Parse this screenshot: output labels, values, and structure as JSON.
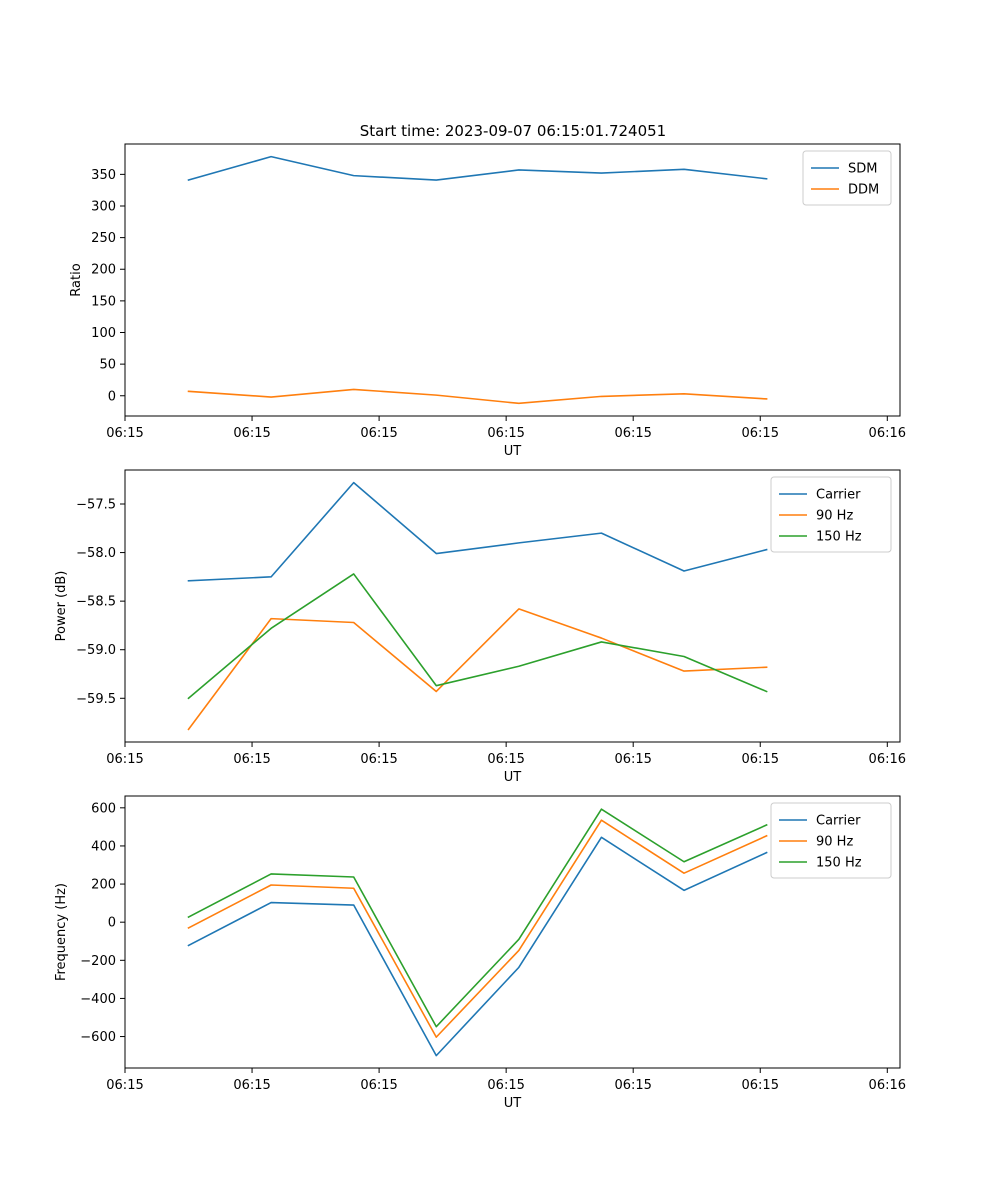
{
  "figure": {
    "title": "Start time: 2023-09-07 06:15:01.724051"
  },
  "chart_data": [
    {
      "type": "line",
      "xlabel": "UT",
      "ylabel": "Ratio",
      "x_tick_labels": [
        "06:15",
        "06:15",
        "06:15",
        "06:15",
        "06:15",
        "06:15",
        "06:16"
      ],
      "xlim": [
        0,
        6.1
      ],
      "x_ticks": [
        0.0,
        1.0,
        2.0,
        3.0,
        4.0,
        5.0,
        6.0
      ],
      "x": [
        0.5,
        1.15,
        1.8,
        2.45,
        3.1,
        3.75,
        4.4,
        5.05
      ],
      "ylim": [
        -32,
        398
      ],
      "y_ticks": [
        0,
        50,
        100,
        150,
        200,
        250,
        300,
        350
      ],
      "y_tick_labels": [
        "0",
        "50",
        "100",
        "150",
        "200",
        "250",
        "300",
        "350"
      ],
      "legend_location": "top-right",
      "series": [
        {
          "name": "SDM",
          "color": "#1f77b4",
          "values": [
            341,
            378,
            348,
            341,
            357,
            352,
            358,
            343
          ]
        },
        {
          "name": "DDM",
          "color": "#ff7f0e",
          "values": [
            7,
            -2,
            10,
            1,
            -12,
            -1,
            3,
            -5
          ]
        }
      ]
    },
    {
      "type": "line",
      "xlabel": "UT",
      "ylabel": "Power (dB)",
      "x_tick_labels": [
        "06:15",
        "06:15",
        "06:15",
        "06:15",
        "06:15",
        "06:15",
        "06:16"
      ],
      "xlim": [
        0,
        6.1
      ],
      "x_ticks": [
        0.0,
        1.0,
        2.0,
        3.0,
        4.0,
        5.0,
        6.0
      ],
      "x": [
        0.5,
        1.15,
        1.8,
        2.45,
        3.1,
        3.75,
        4.4,
        5.05
      ],
      "ylim": [
        -59.95,
        -57.15
      ],
      "y_ticks": [
        -59.5,
        -59.0,
        -58.5,
        -58.0,
        -57.5
      ],
      "y_tick_labels": [
        "−59.5",
        "−59.0",
        "−58.5",
        "−58.0",
        "−57.5"
      ],
      "legend_location": "top-right",
      "series": [
        {
          "name": "Carrier",
          "color": "#1f77b4",
          "values": [
            -58.29,
            -58.25,
            -57.28,
            -58.01,
            -57.9,
            -57.8,
            -58.19,
            -57.97
          ]
        },
        {
          "name": "90 Hz",
          "color": "#ff7f0e",
          "values": [
            -59.82,
            -58.68,
            -58.72,
            -59.43,
            -58.58,
            -58.88,
            -59.22,
            -59.18
          ]
        },
        {
          "name": "150 Hz",
          "color": "#2ca02c",
          "values": [
            -59.5,
            -58.78,
            -58.22,
            -59.37,
            -59.17,
            -58.92,
            -59.07,
            -59.43
          ]
        }
      ]
    },
    {
      "type": "line",
      "xlabel": "UT",
      "ylabel": "Frequency (Hz)",
      "x_tick_labels": [
        "06:15",
        "06:15",
        "06:15",
        "06:15",
        "06:15",
        "06:15",
        "06:16"
      ],
      "xlim": [
        0,
        6.1
      ],
      "x_ticks": [
        0.0,
        1.0,
        2.0,
        3.0,
        4.0,
        5.0,
        6.0
      ],
      "x": [
        0.5,
        1.15,
        1.8,
        2.45,
        3.1,
        3.75,
        4.4,
        5.05
      ],
      "ylim": [
        -765,
        662
      ],
      "y_ticks": [
        -600,
        -400,
        -200,
        0,
        200,
        400,
        600
      ],
      "y_tick_labels": [
        "−600",
        "−400",
        "−200",
        "0",
        "200",
        "400",
        "600"
      ],
      "legend_location": "top-right",
      "series": [
        {
          "name": "Carrier",
          "color": "#1f77b4",
          "values": [
            -122,
            103,
            90,
            -700,
            -237,
            445,
            167,
            365
          ]
        },
        {
          "name": "90 Hz",
          "color": "#ff7f0e",
          "values": [
            -30,
            195,
            178,
            -603,
            -148,
            535,
            257,
            453
          ]
        },
        {
          "name": "150 Hz",
          "color": "#2ca02c",
          "values": [
            27,
            253,
            237,
            -548,
            -90,
            593,
            317,
            510
          ]
        }
      ]
    }
  ]
}
